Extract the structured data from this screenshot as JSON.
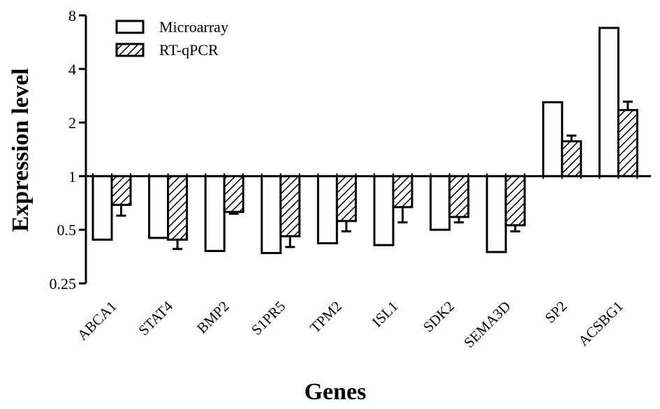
{
  "chart_data": {
    "type": "bar",
    "title": "",
    "xlabel": "Genes",
    "ylabel": "Expression level",
    "yscale": "log2",
    "ylim": [
      0.25,
      8
    ],
    "baseline": 1,
    "yticks": [
      0.25,
      0.5,
      1,
      2,
      4,
      8
    ],
    "ytick_labels": [
      "0.25",
      "0.5",
      "1",
      "2",
      "4",
      "8"
    ],
    "categories": [
      "ABCA1",
      "STAT4",
      "BMP2",
      "S1PR5",
      "TPM2",
      "ISL1",
      "SDK2",
      "SEMA3D",
      "SP2",
      "ACSBG1"
    ],
    "series": [
      {
        "name": "Microarray",
        "pattern": "open",
        "values": [
          0.44,
          0.45,
          0.38,
          0.37,
          0.42,
          0.41,
          0.5,
          0.375,
          2.6,
          6.8
        ]
      },
      {
        "name": "RT-qPCR",
        "pattern": "hatched",
        "values": [
          0.69,
          0.44,
          0.63,
          0.46,
          0.56,
          0.67,
          0.59,
          0.53,
          1.57,
          2.35
        ],
        "error": [
          0.09,
          0.05,
          0.015,
          0.06,
          0.07,
          0.12,
          0.04,
          0.04,
          0.12,
          0.27
        ]
      }
    ],
    "legend": "top-left",
    "grid": false
  }
}
